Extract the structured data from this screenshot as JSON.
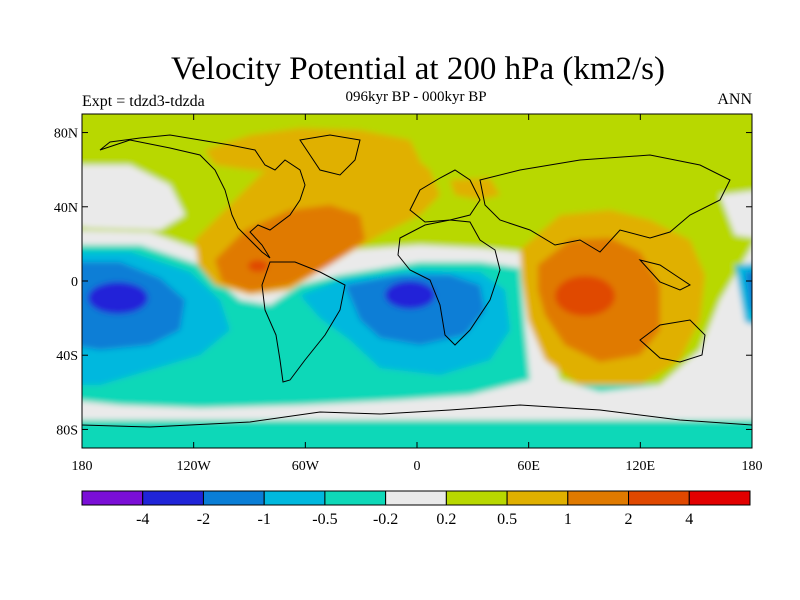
{
  "title": "Velocity Potential at 200 hPa (km2/s)",
  "subtitle": "096kyr BP - 000kyr BP",
  "left_label": "Expt = tdzd3-tdzda",
  "right_label": "ANN",
  "map": {
    "lon_range": [
      -180,
      180
    ],
    "lat_range": [
      -90,
      90
    ],
    "lon_ticks": [
      {
        "value": -180,
        "label": "180"
      },
      {
        "value": -120,
        "label": "120W"
      },
      {
        "value": -60,
        "label": "60W"
      },
      {
        "value": 0,
        "label": "0"
      },
      {
        "value": 60,
        "label": "60E"
      },
      {
        "value": 120,
        "label": "120E"
      },
      {
        "value": 180,
        "label": "180"
      }
    ],
    "lat_ticks": [
      {
        "value": 80,
        "label": "80N"
      },
      {
        "value": 40,
        "label": "40N"
      },
      {
        "value": 0,
        "label": "0"
      },
      {
        "value": -40,
        "label": "40S"
      },
      {
        "value": -80,
        "label": "80S"
      }
    ]
  },
  "colorbar": {
    "colors": [
      "#7a0fd6",
      "#2024d8",
      "#0a7ed6",
      "#00b8de",
      "#0ed8b8",
      "#eaeaea",
      "#b8d800",
      "#e0b000",
      "#e07a00",
      "#e04800",
      "#e20000"
    ],
    "labels": [
      "-4",
      "-2",
      "-1",
      "-0.5",
      "-0.2",
      "0.2",
      "0.5",
      "1",
      "2",
      "4"
    ]
  }
}
